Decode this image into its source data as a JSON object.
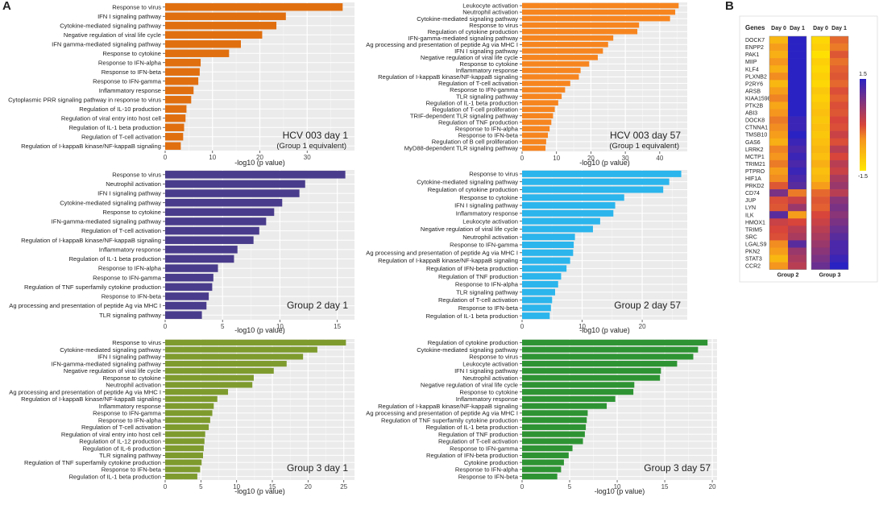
{
  "figure": {
    "panel_a": "A",
    "panel_b": "B"
  },
  "chart_data": [
    {
      "type": "bar",
      "orientation": "horizontal",
      "title": "HCV 003 day 1",
      "subtitle": "(Group 1 equivalent)",
      "xlabel": "-log10 (p value)",
      "xlim": [
        0,
        40
      ],
      "xticks": [
        0,
        10,
        20,
        30
      ],
      "color": "#E06F10",
      "categories": [
        "Response to virus",
        "IFN I signaling pathway",
        "Cytokine-mediated signaling pathway",
        "Negative regulation of viral life cycle",
        "IFN gamma-mediated signaling pathway",
        "Response to cytokine",
        "Response to IFN-alpha",
        "Response to IFN-beta",
        "Response to IFN-gamma",
        "Inflammatory response",
        "Cytoplasmic PRR signaling pathway in response to virus",
        "Regulation of IL-10 production",
        "Regulation of viral entry into host cell",
        "Regulation of IL-1 beta production",
        "Regulation of T-cell activation",
        "Regulation of I-kappaB kinase/NF-kappaB signaling"
      ],
      "values": [
        37.5,
        25.5,
        23.5,
        20.5,
        16,
        13.5,
        7.5,
        7.3,
        7,
        6,
        5.5,
        4.5,
        4.3,
        4,
        3.8,
        3.3
      ]
    },
    {
      "type": "bar",
      "orientation": "horizontal",
      "title": "HCV 003 day 57",
      "subtitle": "(Group 1 equivalent)",
      "xlabel": "-log10 (p value)",
      "xlim": [
        0,
        48
      ],
      "xticks": [
        0,
        10,
        20,
        30,
        40
      ],
      "color": "#F7851F",
      "categories": [
        "Leukocyte activation",
        "Neutrophil activation",
        "Cytokine-mediated signaling pathway",
        "Response to virus",
        "Regulation of cytokine production",
        "IFN-gamma-mediated signaling pathway",
        "Ag processing and presentation of peptide Ag via MHC I",
        "IFN I signaling pathway",
        "Negative regulation of viral life cycle",
        "Response to cytokine",
        "Inflammatory response",
        "Regulation of I-kappaB kinase/NF-kappaB signaling",
        "Regulation of T-cell activation",
        "Response to IFN-gamma",
        "TLR signaling pathway",
        "Regulation of IL-1 beta production",
        "Regulation of T-cell proliferation",
        "TRIF-dependent TLR signaling pathway",
        "Regulation of TNF production",
        "Response to IFN-alpha",
        "Response to IFN-beta",
        "Regulation of B cell proliferation",
        "MyD88-dependent TLR signaling pathway"
      ],
      "values": [
        45.5,
        44.5,
        43,
        34,
        33.5,
        26.5,
        25,
        23.5,
        22,
        19.5,
        17,
        16.5,
        14,
        12.5,
        11.5,
        10.5,
        9.5,
        9,
        8.5,
        8,
        7.5,
        7,
        6.8
      ]
    },
    {
      "type": "bar",
      "orientation": "horizontal",
      "title": "Group 2 day 1",
      "subtitle": "",
      "xlabel": "-log10 (p value)",
      "xlim": [
        0,
        16.5
      ],
      "xticks": [
        0,
        5,
        10,
        15
      ],
      "color": "#4A3C8C",
      "categories": [
        "Response to virus",
        "Neutrophil activation",
        "IFN I signaling pathway",
        "Cytokine-mediated signaling pathway",
        "Response to cytokine",
        "IFN-gamma-mediated signaling pathway",
        "Regulation of T-cell activation",
        "Regulation of I-kappaB kinase/NF-kappaB signaling",
        "Inflammatory response",
        "Regulation of IL-1 beta production",
        "Response to IFN-alpha",
        "Response to IFN-gamma",
        "Regulation of TNF superfamily cytokine production",
        "Response to IFN-beta",
        "Ag processing and presentation of peptide Ag via MHC I",
        "TLR signaling pathway"
      ],
      "values": [
        15.7,
        12.2,
        11.7,
        10.2,
        9.5,
        8.8,
        8.2,
        7.7,
        6.3,
        6,
        4.6,
        4.2,
        4.1,
        3.8,
        3.6,
        3.2
      ]
    },
    {
      "type": "bar",
      "orientation": "horizontal",
      "title": "Group 2 day 57",
      "subtitle": "",
      "xlabel": "-log10 (p value)",
      "xlim": [
        0,
        27.5
      ],
      "xticks": [
        0,
        10,
        20
      ],
      "color": "#2BB5EC",
      "categories": [
        "Response to virus",
        "Cytokine-mediated signaling pathway",
        "Regulation of cytokine production",
        "Response to cytokine",
        "IFN I signaling pathway",
        "Inflammatory response",
        "Leukocyte activation",
        "Negative regulation of viral life cycle",
        "Neutrophil activation",
        "Response to IFN-gamma",
        "Ag processing and presentation of peptide Ag via MHC I",
        "Regulation of I-kappaB kinase/NF-kappaB signaling",
        "Regulation of IFN-beta production",
        "Regulation of TNF production",
        "Response to IFN-alpha",
        "TLR signaling pathway",
        "Regulation of T-cell activation",
        "Response to IFN-beta",
        "Regulation of IL-1 beta production"
      ],
      "values": [
        26.5,
        24.5,
        23.5,
        17,
        15.5,
        15.2,
        13,
        11.8,
        8.8,
        8.6,
        8.5,
        8,
        7.4,
        6.5,
        6,
        5.5,
        5,
        4.8,
        4.6
      ]
    },
    {
      "type": "bar",
      "orientation": "horizontal",
      "title": "Group 3 day 1",
      "subtitle": "",
      "xlabel": "-log10 (p value)",
      "xlim": [
        0,
        26.5
      ],
      "xticks": [
        0,
        5,
        10,
        15,
        20,
        25
      ],
      "color": "#7E9B2E",
      "categories": [
        "Response to virus",
        "Cytokine-mediated signaling pathway",
        "IFN I signaling pathway",
        "IFN-gamma-mediated signaling pathway",
        "Negative regulation of viral life cycle",
        "Response to cytokine",
        "Neutrophil activation",
        "Ag processing and presentation of peptide Ag via MHC I",
        "Regulation of I-kappaB kinase/NF-kappaB signaling",
        "Inflammatory response",
        "Response to IFN-gamma",
        "Response to IFN-alpha",
        "Regulation of T-cell activation",
        "Regulation of viral entry into host cell",
        "Regulation of IL-12 production",
        "Regulation of IL-6 production",
        "TLR signaling pathway",
        "Regulation of TNF superfamily cytokine production",
        "Response to IFN-beta",
        "Regulation of IL-1 beta production"
      ],
      "values": [
        25.3,
        21.3,
        19.3,
        17,
        15.2,
        12.4,
        12.2,
        8.8,
        7.3,
        6.8,
        6.6,
        6.3,
        6.1,
        5.6,
        5.5,
        5.4,
        5.3,
        5.1,
        4.9,
        4.5
      ]
    },
    {
      "type": "bar",
      "orientation": "horizontal",
      "title": "Group 3 day 57",
      "subtitle": "",
      "xlabel": "-log10 (p value)",
      "xlim": [
        0,
        20.5
      ],
      "xticks": [
        0,
        5,
        10,
        15,
        20
      ],
      "color": "#2E9433",
      "categories": [
        "Regulation of cytokine production",
        "Cytokine-mediated signaling pathway",
        "Response to virus",
        "Leukocyte activation",
        "IFN I signaling pathway",
        "Neutrophil activation",
        "Negative regulation of viral life cycle",
        "Response to cytokine",
        "Inflammatory response",
        "Regulation of I-kappaB kinase/NF-kappaB signaling",
        "Ag processing and presentation of peptide Ag via MHC I",
        "Regulation of TNF superfamily cytokine production",
        "Regulation of IL-1 beta production",
        "Regulation of TNF production",
        "Regulation of T-cell activation",
        "Response to IFN-gamma",
        "Regulation of IFN-beta production",
        "Cytokine production",
        "Response to IFN-alpha",
        "Response to IFN-beta"
      ],
      "values": [
        19.5,
        18.5,
        18,
        16.3,
        14.6,
        14.5,
        11.8,
        11.7,
        9.8,
        8.9,
        6.9,
        6.8,
        6.7,
        6.6,
        6.4,
        5.3,
        4.9,
        4.4,
        4.1,
        3.7
      ]
    },
    {
      "type": "heatmap",
      "genes_header": "Genes",
      "column_labels": [
        "Day 0",
        "Day 1"
      ],
      "group_labels": [
        "Group 2",
        "Group 3"
      ],
      "colorbar": {
        "max_label": "1.5",
        "min_label": "-1.5",
        "low_color": "#FFE800",
        "mid_color": "#D8453A",
        "high_color": "#2A22C2"
      },
      "genes": [
        "DOCK7",
        "ENPP2",
        "PAK1",
        "MIIP",
        "KLF4",
        "PLXNB2",
        "P2RY6",
        "ARSB",
        "KIAA1598",
        "PTK2B",
        "ABI3",
        "DOCK8",
        "CTNNA1",
        "TMSB10",
        "GAS6",
        "LRRK2",
        "MCTP1",
        "TRIM21",
        "PTPRO",
        "HIF1A",
        "PRKD2",
        "CD74",
        "JUP",
        "LYN",
        "ILK",
        "HMOX1",
        "TRIM5",
        "SRC",
        "LGALS9",
        "PKN2",
        "STAT3",
        "CCR2"
      ],
      "group2": [
        [
          -0.9,
          1.5
        ],
        [
          -0.6,
          1.5
        ],
        [
          -0.8,
          1.5
        ],
        [
          -0.5,
          1.5
        ],
        [
          -0.8,
          1.5
        ],
        [
          -0.4,
          1.5
        ],
        [
          -0.9,
          1.5
        ],
        [
          -0.6,
          1.5
        ],
        [
          -0.3,
          1.5
        ],
        [
          -0.7,
          1.5
        ],
        [
          -0.5,
          1.5
        ],
        [
          -0.2,
          1.4
        ],
        [
          -0.4,
          1.4
        ],
        [
          -0.6,
          1.5
        ],
        [
          -0.8,
          1.4
        ],
        [
          -0.3,
          1.3
        ],
        [
          -0.5,
          1.4
        ],
        [
          -0.2,
          1.3
        ],
        [
          -0.6,
          1.4
        ],
        [
          -0.4,
          1.3
        ],
        [
          0.2,
          1.2
        ],
        [
          1.0,
          -0.2
        ],
        [
          0.3,
          0.5
        ],
        [
          0.2,
          0.8
        ],
        [
          1.2,
          -0.6
        ],
        [
          0.5,
          0.4
        ],
        [
          0.4,
          0.6
        ],
        [
          0.3,
          0.7
        ],
        [
          -0.4,
          1.2
        ],
        [
          -0.6,
          0.8
        ],
        [
          -0.9,
          0.7
        ],
        [
          -0.5,
          0.6
        ]
      ],
      "group3": [
        [
          -1.3,
          0.0
        ],
        [
          -1.2,
          -0.2
        ],
        [
          -1.4,
          0.2
        ],
        [
          -1.2,
          -0.1
        ],
        [
          -1.3,
          0.1
        ],
        [
          -1.2,
          0.2
        ],
        [
          -1.3,
          0.0
        ],
        [
          -1.1,
          0.3
        ],
        [
          -1.2,
          0.1
        ],
        [
          -1.1,
          0.3
        ],
        [
          -1.0,
          0.2
        ],
        [
          -1.1,
          0.4
        ],
        [
          -1.0,
          0.3
        ],
        [
          -1.1,
          0.5
        ],
        [
          -1.0,
          0.3
        ],
        [
          -0.9,
          0.6
        ],
        [
          -1.0,
          0.4
        ],
        [
          -0.8,
          0.6
        ],
        [
          -1.0,
          0.5
        ],
        [
          -0.9,
          0.7
        ],
        [
          -0.6,
          0.8
        ],
        [
          0.0,
          0.6
        ],
        [
          0.2,
          0.9
        ],
        [
          0.1,
          1.0
        ],
        [
          0.4,
          0.9
        ],
        [
          0.5,
          1.0
        ],
        [
          0.6,
          1.1
        ],
        [
          0.7,
          1.2
        ],
        [
          0.8,
          1.3
        ],
        [
          0.9,
          1.3
        ],
        [
          1.0,
          1.4
        ],
        [
          1.1,
          1.5
        ]
      ]
    }
  ]
}
